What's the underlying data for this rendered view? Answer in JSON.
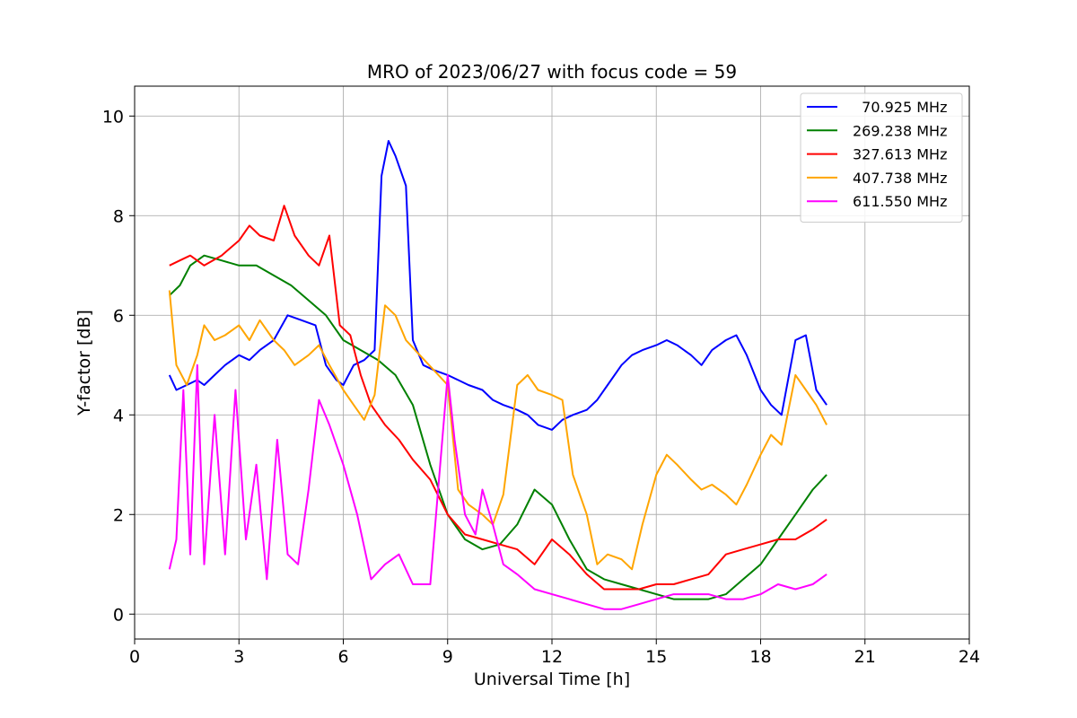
{
  "chart_data": {
    "type": "line",
    "title": "MRO of 2023/06/27 with focus code = 59",
    "xlabel": "Universal Time [h]",
    "ylabel": "Y-factor [dB]",
    "xlim": [
      0,
      24
    ],
    "ylim": [
      -0.5,
      10.6
    ],
    "xticks": [
      0,
      3,
      6,
      9,
      12,
      15,
      18,
      21,
      24
    ],
    "yticks": [
      0,
      2,
      4,
      6,
      8,
      10
    ],
    "grid": true,
    "legend_position": "top-right",
    "series": [
      {
        "name": "  70.925 MHz",
        "color": "#0000ff",
        "x": [
          1.0,
          1.2,
          1.5,
          1.8,
          2.0,
          2.3,
          2.6,
          3.0,
          3.3,
          3.6,
          4.0,
          4.4,
          4.8,
          5.2,
          5.5,
          5.8,
          6.0,
          6.3,
          6.6,
          6.9,
          7.1,
          7.3,
          7.5,
          7.8,
          8.0,
          8.3,
          8.6,
          9.0,
          9.3,
          9.6,
          10.0,
          10.3,
          10.6,
          11.0,
          11.3,
          11.6,
          12.0,
          12.3,
          12.6,
          13.0,
          13.3,
          13.6,
          14.0,
          14.3,
          14.6,
          15.0,
          15.3,
          15.6,
          16.0,
          16.3,
          16.6,
          17.0,
          17.3,
          17.6,
          18.0,
          18.3,
          18.6,
          19.0,
          19.3,
          19.6,
          19.9
        ],
        "y": [
          4.8,
          4.5,
          4.6,
          4.7,
          4.6,
          4.8,
          5.0,
          5.2,
          5.1,
          5.3,
          5.5,
          6.0,
          5.9,
          5.8,
          5.0,
          4.7,
          4.6,
          5.0,
          5.1,
          5.3,
          8.8,
          9.5,
          9.2,
          8.6,
          5.5,
          5.0,
          4.9,
          4.8,
          4.7,
          4.6,
          4.5,
          4.3,
          4.2,
          4.1,
          4.0,
          3.8,
          3.7,
          3.9,
          4.0,
          4.1,
          4.3,
          4.6,
          5.0,
          5.2,
          5.3,
          5.4,
          5.5,
          5.4,
          5.2,
          5.0,
          5.3,
          5.5,
          5.6,
          5.2,
          4.5,
          4.2,
          4.0,
          5.5,
          5.6,
          4.5,
          4.2
        ]
      },
      {
        "name": "269.238 MHz",
        "color": "#008000",
        "x": [
          1.0,
          1.3,
          1.6,
          2.0,
          2.5,
          3.0,
          3.5,
          4.0,
          4.5,
          5.0,
          5.5,
          6.0,
          6.5,
          7.0,
          7.5,
          8.0,
          8.5,
          9.0,
          9.5,
          10.0,
          10.5,
          11.0,
          11.5,
          12.0,
          12.5,
          13.0,
          13.5,
          14.0,
          14.5,
          15.0,
          15.5,
          16.0,
          16.5,
          17.0,
          17.5,
          18.0,
          18.5,
          19.0,
          19.5,
          19.9
        ],
        "y": [
          6.4,
          6.6,
          7.0,
          7.2,
          7.1,
          7.0,
          7.0,
          6.8,
          6.6,
          6.3,
          6.0,
          5.5,
          5.3,
          5.1,
          4.8,
          4.2,
          3.0,
          2.0,
          1.5,
          1.3,
          1.4,
          1.8,
          2.5,
          2.2,
          1.5,
          0.9,
          0.7,
          0.6,
          0.5,
          0.4,
          0.3,
          0.3,
          0.3,
          0.4,
          0.7,
          1.0,
          1.5,
          2.0,
          2.5,
          2.8
        ]
      },
      {
        "name": "327.613 MHz",
        "color": "#ff0000",
        "x": [
          1.0,
          1.3,
          1.6,
          2.0,
          2.5,
          3.0,
          3.3,
          3.6,
          4.0,
          4.3,
          4.6,
          5.0,
          5.3,
          5.6,
          5.9,
          6.2,
          6.5,
          6.8,
          7.2,
          7.6,
          8.0,
          8.5,
          9.0,
          9.5,
          10.0,
          10.5,
          11.0,
          11.5,
          12.0,
          12.5,
          13.0,
          13.5,
          14.0,
          14.5,
          15.0,
          15.5,
          16.0,
          16.5,
          17.0,
          17.5,
          18.0,
          18.5,
          19.0,
          19.5,
          19.9
        ],
        "y": [
          7.0,
          7.1,
          7.2,
          7.0,
          7.2,
          7.5,
          7.8,
          7.6,
          7.5,
          8.2,
          7.6,
          7.2,
          7.0,
          7.6,
          5.8,
          5.6,
          4.8,
          4.2,
          3.8,
          3.5,
          3.1,
          2.7,
          2.0,
          1.6,
          1.5,
          1.4,
          1.3,
          1.0,
          1.5,
          1.2,
          0.8,
          0.5,
          0.5,
          0.5,
          0.6,
          0.6,
          0.7,
          0.8,
          1.2,
          1.3,
          1.4,
          1.5,
          1.5,
          1.7,
          1.9
        ]
      },
      {
        "name": "407.738 MHz",
        "color": "#ffa500",
        "x": [
          1.0,
          1.2,
          1.5,
          1.8,
          2.0,
          2.3,
          2.6,
          3.0,
          3.3,
          3.6,
          4.0,
          4.3,
          4.6,
          5.0,
          5.3,
          5.6,
          6.0,
          6.3,
          6.6,
          6.9,
          7.2,
          7.5,
          7.8,
          8.2,
          8.6,
          9.0,
          9.3,
          9.6,
          10.0,
          10.3,
          10.6,
          11.0,
          11.3,
          11.6,
          12.0,
          12.3,
          12.6,
          13.0,
          13.3,
          13.6,
          14.0,
          14.3,
          14.6,
          15.0,
          15.3,
          15.6,
          16.0,
          16.3,
          16.6,
          17.0,
          17.3,
          17.6,
          18.0,
          18.3,
          18.6,
          19.0,
          19.3,
          19.6,
          19.9
        ],
        "y": [
          6.5,
          5.0,
          4.6,
          5.2,
          5.8,
          5.5,
          5.6,
          5.8,
          5.5,
          5.9,
          5.5,
          5.3,
          5.0,
          5.2,
          5.4,
          5.0,
          4.5,
          4.2,
          3.9,
          4.4,
          6.2,
          6.0,
          5.5,
          5.2,
          4.9,
          4.6,
          2.5,
          2.2,
          2.0,
          1.8,
          2.4,
          4.6,
          4.8,
          4.5,
          4.4,
          4.3,
          2.8,
          2.0,
          1.0,
          1.2,
          1.1,
          0.9,
          1.8,
          2.8,
          3.2,
          3.0,
          2.7,
          2.5,
          2.6,
          2.4,
          2.2,
          2.6,
          3.2,
          3.6,
          3.4,
          4.8,
          4.5,
          4.2,
          3.8
        ]
      },
      {
        "name": "611.550 MHz",
        "color": "#ff00ff",
        "x": [
          1.0,
          1.2,
          1.4,
          1.6,
          1.8,
          2.0,
          2.3,
          2.6,
          2.9,
          3.2,
          3.5,
          3.8,
          4.1,
          4.4,
          4.7,
          5.0,
          5.3,
          5.6,
          6.0,
          6.4,
          6.8,
          7.2,
          7.6,
          8.0,
          8.5,
          9.0,
          9.2,
          9.5,
          9.8,
          10.0,
          10.3,
          10.6,
          11.0,
          11.5,
          12.0,
          12.5,
          13.0,
          13.5,
          14.0,
          14.5,
          15.0,
          15.5,
          16.0,
          16.5,
          17.0,
          17.5,
          18.0,
          18.5,
          19.0,
          19.5,
          19.9
        ],
        "y": [
          0.9,
          1.5,
          4.5,
          1.2,
          5.0,
          1.0,
          4.0,
          1.2,
          4.5,
          1.5,
          3.0,
          0.7,
          3.5,
          1.2,
          1.0,
          2.5,
          4.3,
          3.8,
          3.0,
          2.0,
          0.7,
          1.0,
          1.2,
          0.6,
          0.6,
          4.8,
          3.5,
          2.0,
          1.6,
          2.5,
          1.8,
          1.0,
          0.8,
          0.5,
          0.4,
          0.3,
          0.2,
          0.1,
          0.1,
          0.2,
          0.3,
          0.4,
          0.4,
          0.4,
          0.3,
          0.3,
          0.4,
          0.6,
          0.5,
          0.6,
          0.8
        ]
      }
    ]
  }
}
